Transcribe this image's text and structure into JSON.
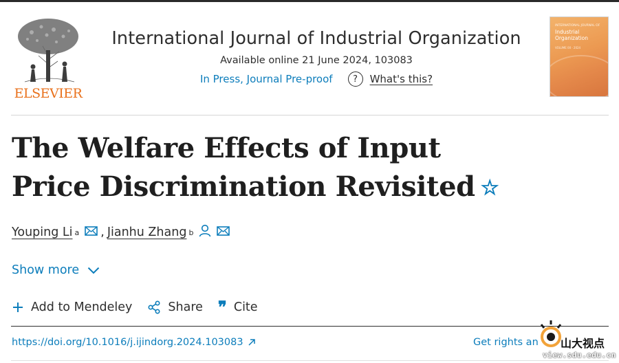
{
  "publisher": {
    "name": "ELSEVIER",
    "logo_icon": "elsevier-tree-logo",
    "brand_color": "#e9711c"
  },
  "journal": {
    "title": "International Journal of Industrial Organization",
    "availability": "Available online 21 June 2024, 103083",
    "status_label": "In Press, Journal Pre-proof",
    "help_icon": "question-circle-icon",
    "help_link": "What's this?",
    "cover": {
      "small_line": "INTERNATIONAL JOURNAL OF",
      "title": "Industrial Organization",
      "sub_line": "VOLUME 00 · 2024"
    }
  },
  "article": {
    "title": "The Welfare Effects of Input Price Discrimination Revisited",
    "star_icon": "star-icon",
    "authors": [
      {
        "name": "Youping Li",
        "affiliation": "a",
        "icons": [
          "mail-icon"
        ]
      },
      {
        "name": "Jianhu Zhang",
        "affiliation": "b",
        "icons": [
          "person-icon",
          "mail-icon"
        ]
      }
    ],
    "author_separator": ","
  },
  "show_more": {
    "label": "Show more",
    "icon": "chevron-down-icon"
  },
  "actions": [
    {
      "label": "Add to Mendeley",
      "icon": "plus-icon"
    },
    {
      "label": "Share",
      "icon": "share-icon"
    },
    {
      "label": "Cite",
      "icon": "quote-icon",
      "glyph": "❞"
    }
  ],
  "links": {
    "doi": "https://doi.org/10.1016/j.ijindorg.2024.103083",
    "doi_icon": "external-link-icon",
    "rights": "Get rights an"
  },
  "watermark": {
    "text": "山大视点",
    "url": "view.sdu.edu.cn"
  },
  "colors": {
    "link": "#0c7dbb",
    "text": "#2e2e2e",
    "cover_orange": "#ec9a52"
  }
}
